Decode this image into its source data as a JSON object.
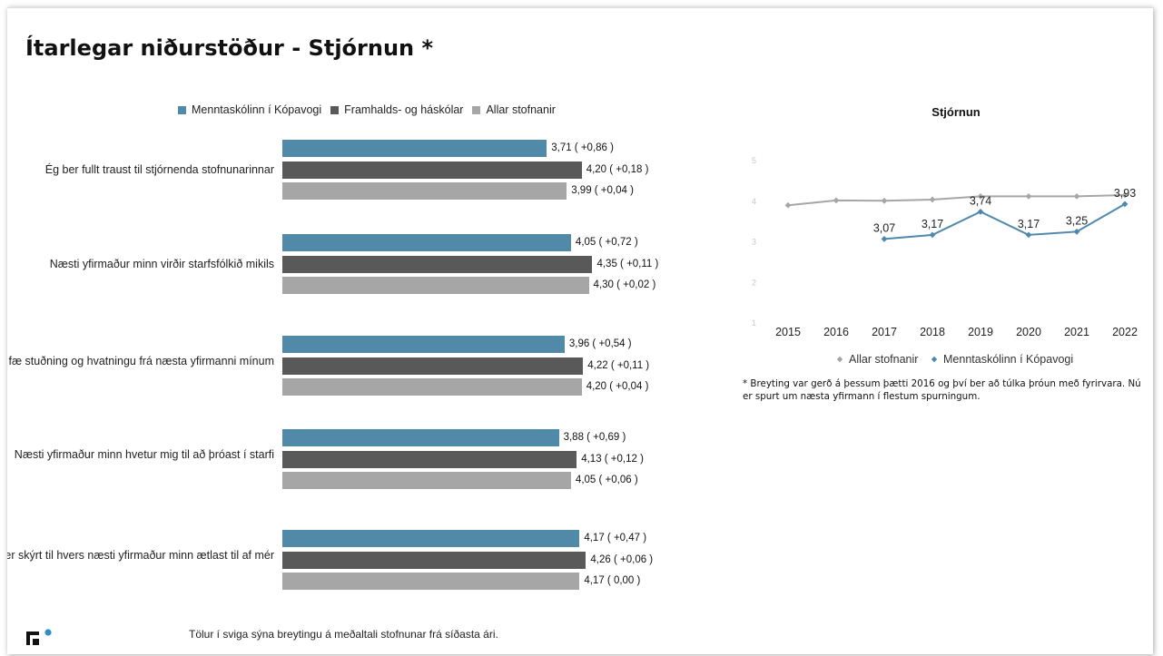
{
  "page": {
    "title": "Ítarlegar niðurstöður - Stjórnun *",
    "footnote": "* Breyting var gerð á þessum þætti 2016 og því ber að túlka þróun með fyrirvara. Nú er spurt um næsta yfirmann í flestum spurningum.",
    "bottom_note": "Tölur í sviga sýna breytingu á meðaltali stofnunar frá síðasta ári."
  },
  "colors": {
    "series_1": "#5189a8",
    "series_2": "#595959",
    "series_3": "#a6a6a6",
    "line_all": "#a6a6a6",
    "line_mk": "#4e88ad"
  },
  "chart_data": [
    {
      "type": "bar",
      "orientation": "horizontal",
      "legend": [
        "Menntaskólinn í Kópavogi",
        "Framhalds- og háskólar",
        "Allar stofnanir"
      ],
      "legend_position": "top",
      "categories": [
        "Ég ber fullt traust til stjórnenda stofnunarinnar",
        "Næsti yfirmaður minn virðir starfsfólkið mikils",
        "Ég fæ stuðning og hvatningu frá næsta yfirmanni mínum",
        "Næsti yfirmaður minn hvetur mig til að þróast í starfi",
        "Það er skýrt til hvers næsti yfirmaður minn ætlast til af mér"
      ],
      "series": [
        {
          "name": "Menntaskólinn í Kópavogi",
          "values": [
            3.71,
            4.05,
            3.96,
            3.88,
            4.17
          ],
          "labels": [
            "3,71 ( +0,86 )",
            "4,05 ( +0,72 )",
            "3,96 ( +0,54 )",
            "3,88 ( +0,69 )",
            "4,17 ( +0,47 )"
          ]
        },
        {
          "name": "Framhalds- og háskólar",
          "values": [
            4.2,
            4.35,
            4.22,
            4.13,
            4.26
          ],
          "labels": [
            "4,20 ( +0,18 )",
            "4,35 ( +0,11 )",
            "4,22 ( +0,11 )",
            "4,13 ( +0,12 )",
            "4,26 ( +0,06 )"
          ]
        },
        {
          "name": "Allar stofnanir",
          "values": [
            3.99,
            4.3,
            4.2,
            4.05,
            4.17
          ],
          "labels": [
            "3,99 ( +0,04 )",
            "4,30 ( +0,02 )",
            "4,20 ( +0,04 )",
            "4,05 ( +0,06 )",
            "4,17 ( 0,00 )"
          ]
        }
      ]
    },
    {
      "type": "line",
      "title": "Stjórnun",
      "x": [
        "2015",
        "2016",
        "2017",
        "2018",
        "2019",
        "2020",
        "2021",
        "2022"
      ],
      "y_ticks": [
        "1",
        "2",
        "3",
        "4",
        "5"
      ],
      "ylim": [
        1,
        5
      ],
      "legend_position": "bottom",
      "series": [
        {
          "name": "Allar stofnanir",
          "values": [
            3.9,
            4.02,
            4.01,
            4.04,
            4.12,
            4.12,
            4.12,
            4.15
          ],
          "marker": "diamond"
        },
        {
          "name": "Menntaskólinn í Kópavogi",
          "values": [
            null,
            null,
            3.07,
            3.17,
            3.74,
            3.17,
            3.25,
            3.93
          ],
          "labels": [
            null,
            null,
            "3,07",
            "3,17",
            "3,74",
            "3,17",
            "3,25",
            "3,93"
          ],
          "marker": "diamond"
        }
      ]
    }
  ]
}
